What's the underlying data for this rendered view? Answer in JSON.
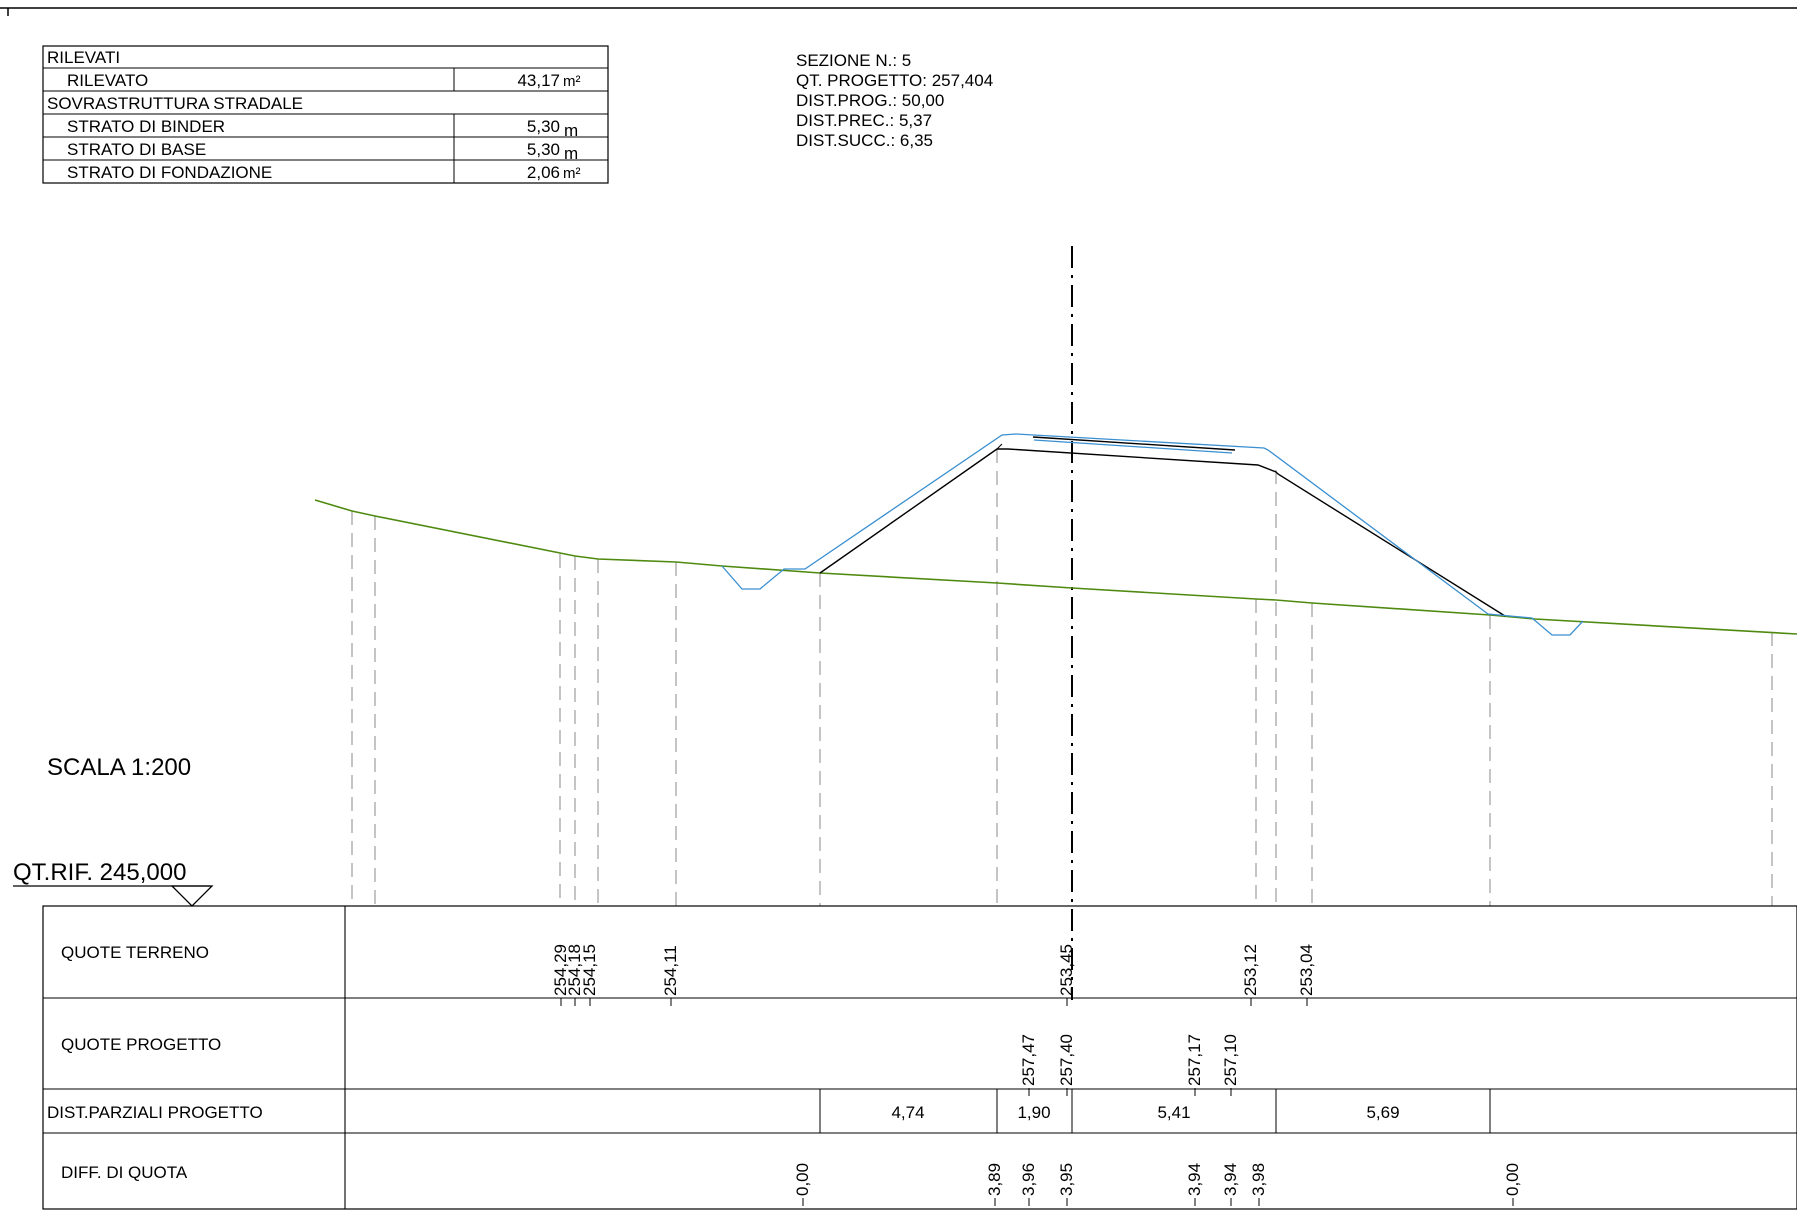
{
  "summary_table": {
    "rows": [
      {
        "label": "RILEVATI",
        "value": "",
        "unit": "",
        "indent": false
      },
      {
        "label": "RILEVATO",
        "value": "43,17",
        "unit": "m²",
        "indent": true
      },
      {
        "label": "SOVRASTRUTTURA STRADALE",
        "value": "",
        "unit": "",
        "indent": false
      },
      {
        "label": "STRATO DI BINDER",
        "value": "5,30",
        "unit": "m",
        "indent": true
      },
      {
        "label": "STRATO DI BASE",
        "value": "5,30",
        "unit": "m",
        "indent": true
      },
      {
        "label": "STRATO DI FONDAZIONE",
        "value": "2,06",
        "unit": "m²",
        "indent": true
      }
    ]
  },
  "section_info": {
    "lines": [
      "SEZIONE N.: 5",
      "QT. PROGETTO: 257,404",
      "DIST.PROG.: 50,00",
      "DIST.PREC.: 5,37",
      "DIST.SUCC.: 6,35"
    ]
  },
  "scale_label": "SCALA 1:200",
  "reference_level": "QT.RIF. 245,000",
  "colors": {
    "ground": "#4f8a10",
    "design_outer": "#3a8fd0",
    "structure": "#000000",
    "guide": "#888888"
  },
  "profile_table": {
    "rows": [
      {
        "label": "QUOTE TERRENO",
        "values": [
          "254,29",
          "254,18",
          "254,15",
          "254,11",
          "253,45",
          "253,12",
          "253,04"
        ]
      },
      {
        "label": "QUOTE PROGETTO",
        "values": [
          "257,47",
          "257,40",
          "257,17",
          "257,10"
        ]
      },
      {
        "label": "DIST.PARZIALI PROGETTO",
        "values": [
          "4,74",
          "1,90",
          "5,41",
          "5,69"
        ]
      },
      {
        "label": "DIFF. DI QUOTA",
        "values": [
          "0,00",
          "3,89",
          "3,96",
          "3,95",
          "3,94",
          "3,94",
          "3,98",
          "0,00"
        ]
      }
    ]
  }
}
